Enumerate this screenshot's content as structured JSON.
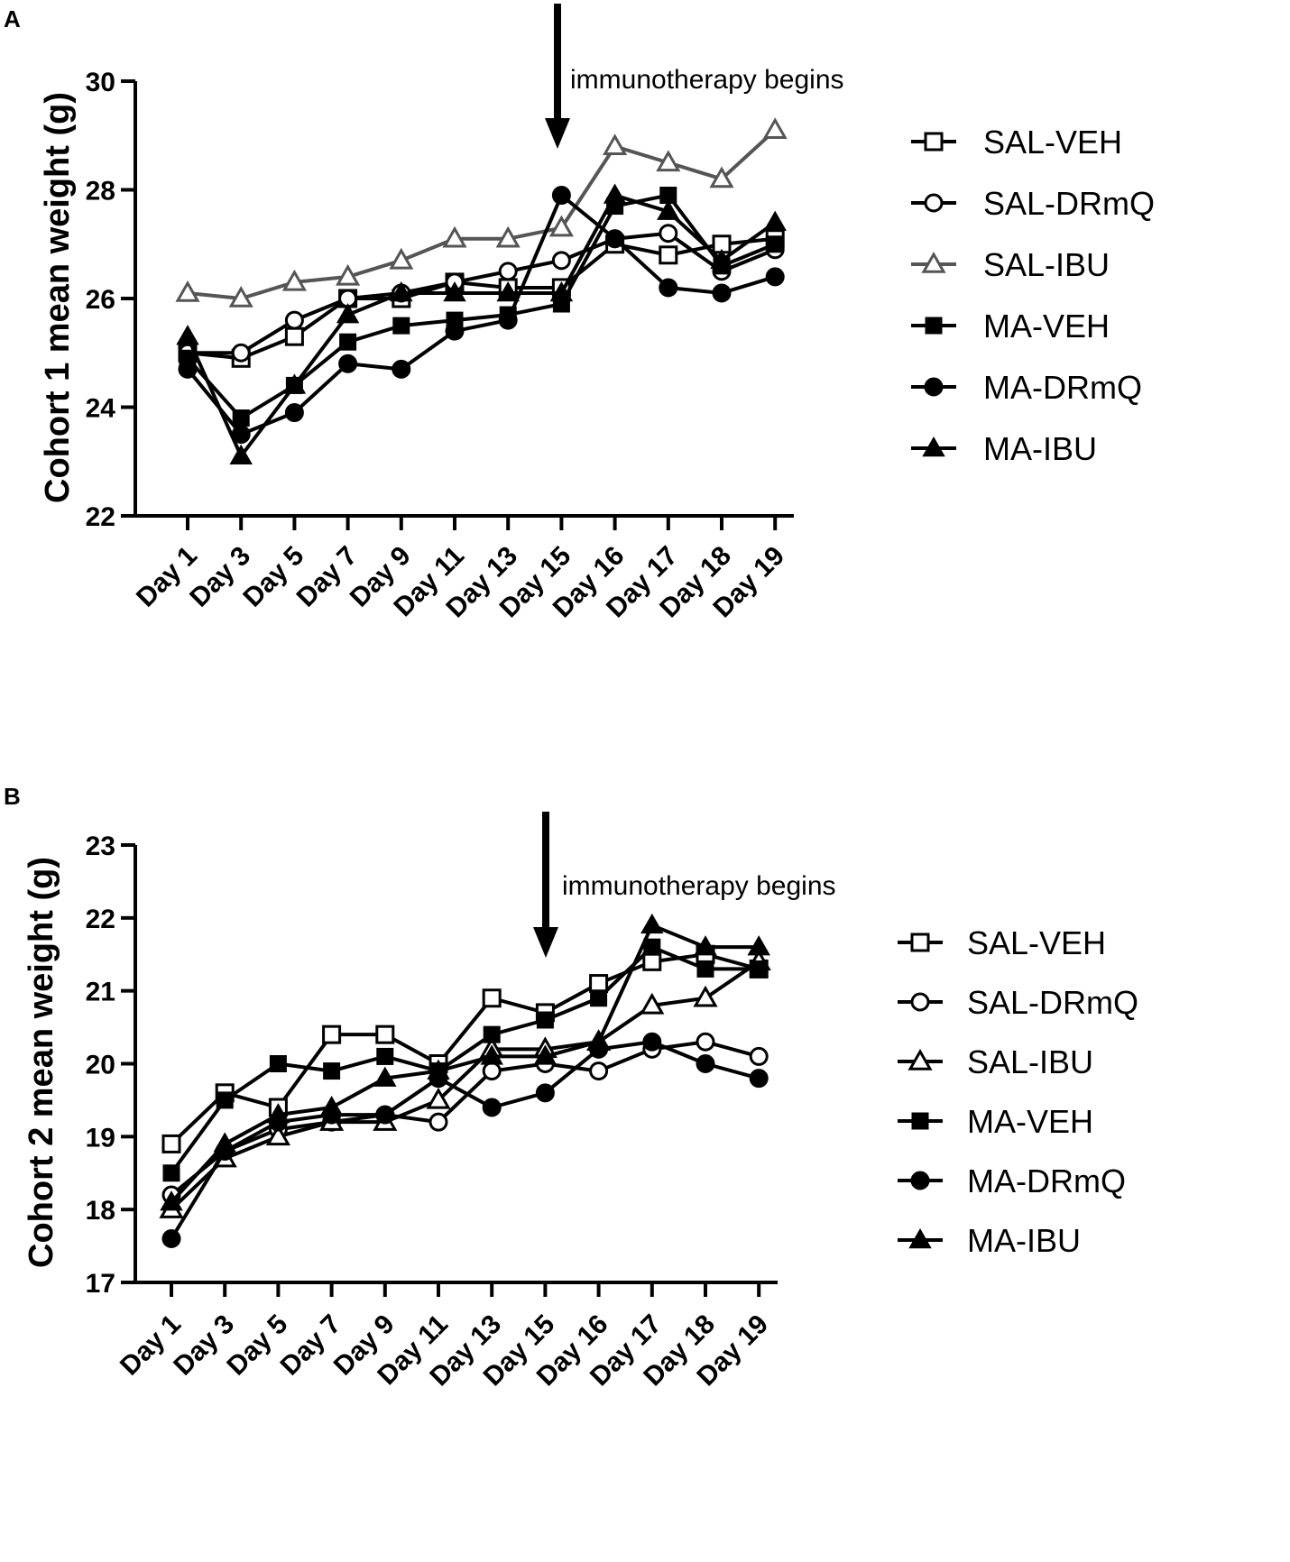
{
  "chart_data": [
    {
      "panel": "A",
      "type": "line",
      "ylabel": "Cohort 1 mean weight (g)",
      "xlabel": "",
      "ylim": [
        22,
        30
      ],
      "yticks": [
        "22",
        "24",
        "26",
        "28",
        "30"
      ],
      "categories": [
        "Day 1",
        "Day 3",
        "Day 5",
        "Day 7",
        "Day 9",
        "Day 11",
        "Day 13",
        "Day 15",
        "Day 16",
        "Day 17",
        "Day 18",
        "Day 19"
      ],
      "annotation": {
        "text": "immunotherapy begins",
        "category": "Day 15"
      },
      "series": [
        {
          "name": "SAL-VEH",
          "marker": "square-open",
          "color": "#000000",
          "values": [
            25.0,
            24.9,
            25.3,
            26.0,
            26.0,
            26.3,
            26.2,
            26.2,
            27.0,
            26.8,
            27.0,
            27.1
          ]
        },
        {
          "name": "SAL-DRmQ",
          "marker": "circle-open",
          "color": "#000000",
          "values": [
            25.0,
            25.0,
            25.6,
            26.0,
            26.1,
            26.3,
            26.5,
            26.7,
            27.1,
            27.2,
            26.5,
            26.9
          ]
        },
        {
          "name": "SAL-IBU",
          "marker": "triangle-open",
          "color": "#555555",
          "values": [
            26.1,
            26.0,
            26.3,
            26.4,
            26.7,
            27.1,
            27.1,
            27.3,
            28.8,
            28.5,
            28.2,
            29.1
          ]
        },
        {
          "name": "MA-VEH",
          "marker": "square-filled",
          "color": "#000000",
          "values": [
            24.9,
            23.8,
            24.4,
            25.2,
            25.5,
            25.6,
            25.7,
            25.9,
            27.7,
            27.9,
            26.6,
            27.0
          ]
        },
        {
          "name": "MA-DRmQ",
          "marker": "circle-filled",
          "color": "#000000",
          "values": [
            24.7,
            23.5,
            23.9,
            24.8,
            24.7,
            25.4,
            25.6,
            27.9,
            27.1,
            26.2,
            26.1,
            26.4
          ]
        },
        {
          "name": "MA-IBU",
          "marker": "triangle-filled",
          "color": "#000000",
          "values": [
            25.3,
            23.1,
            24.4,
            25.7,
            26.1,
            26.1,
            26.1,
            26.1,
            27.9,
            27.6,
            26.7,
            27.4
          ]
        }
      ]
    },
    {
      "panel": "B",
      "type": "line",
      "ylabel": "Cohort 2 mean weight (g)",
      "xlabel": "",
      "ylim": [
        17,
        23
      ],
      "yticks": [
        "17",
        "18",
        "19",
        "20",
        "21",
        "22",
        "23"
      ],
      "categories": [
        "Day 1",
        "Day 3",
        "Day 5",
        "Day 7",
        "Day 9",
        "Day 11",
        "Day 13",
        "Day 15",
        "Day 16",
        "Day 17",
        "Day 18",
        "Day 19"
      ],
      "annotation": {
        "text": "immunotherapy begins",
        "category": "Day 15"
      },
      "series": [
        {
          "name": "SAL-VEH",
          "marker": "square-open",
          "color": "#000000",
          "values": [
            18.9,
            19.6,
            19.4,
            20.4,
            20.4,
            20.0,
            20.9,
            20.7,
            21.1,
            21.4,
            21.5,
            21.3
          ]
        },
        {
          "name": "SAL-DRmQ",
          "marker": "circle-open",
          "color": "#000000",
          "values": [
            18.2,
            18.8,
            19.1,
            19.2,
            19.3,
            19.2,
            19.9,
            20.0,
            19.9,
            20.2,
            20.3,
            20.1
          ]
        },
        {
          "name": "SAL-IBU",
          "marker": "triangle-open",
          "color": "#000000",
          "values": [
            18.0,
            18.7,
            19.0,
            19.2,
            19.2,
            19.5,
            20.2,
            20.2,
            20.3,
            20.8,
            20.9,
            21.4
          ]
        },
        {
          "name": "MA-VEH",
          "marker": "square-filled",
          "color": "#000000",
          "values": [
            18.5,
            19.5,
            20.0,
            19.9,
            20.1,
            19.9,
            20.4,
            20.6,
            20.9,
            21.6,
            21.3,
            21.3
          ]
        },
        {
          "name": "MA-DRmQ",
          "marker": "circle-filled",
          "color": "#000000",
          "values": [
            17.6,
            18.8,
            19.2,
            19.3,
            19.3,
            19.8,
            19.4,
            19.6,
            20.2,
            20.3,
            20.0,
            19.8
          ]
        },
        {
          "name": "MA-IBU",
          "marker": "triangle-filled",
          "color": "#000000",
          "values": [
            18.1,
            18.9,
            19.3,
            19.4,
            19.8,
            19.9,
            20.1,
            20.1,
            20.3,
            21.9,
            21.6,
            21.6
          ]
        }
      ]
    }
  ]
}
